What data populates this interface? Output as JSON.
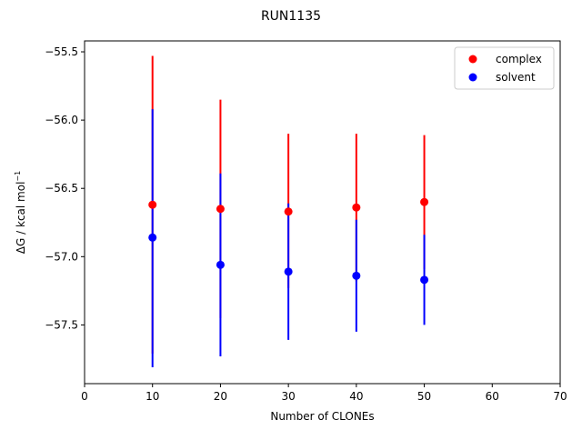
{
  "chart_data": {
    "type": "scatter",
    "title": "RUN1135",
    "xlabel": "Number of CLONEs",
    "ylabel_main": "ΔG / kcal mol",
    "ylabel_sup": "−1",
    "xlim": [
      0,
      70
    ],
    "ylim": [
      -57.93,
      -55.42
    ],
    "xticks": [
      0,
      10,
      20,
      30,
      40,
      50,
      60,
      70
    ],
    "xtick_labels": [
      "0",
      "10",
      "20",
      "30",
      "40",
      "50",
      "60",
      "70"
    ],
    "yticks": [
      -55.5,
      -56.0,
      -56.5,
      -57.0,
      -57.5
    ],
    "ytick_labels": [
      "−55.5",
      "−56.0",
      "−56.5",
      "−57.0",
      "−57.5"
    ],
    "grid": false,
    "legend_position": "top-right",
    "series": [
      {
        "name": "complex",
        "color": "#ff0000",
        "x": [
          10,
          20,
          30,
          40,
          50
        ],
        "y": [
          -56.62,
          -56.65,
          -56.67,
          -56.64,
          -56.6
        ],
        "err_low": [
          -57.71,
          -57.45,
          -57.23,
          -57.18,
          -57.09
        ],
        "err_high": [
          -55.53,
          -55.85,
          -56.1,
          -56.1,
          -56.11
        ]
      },
      {
        "name": "solvent",
        "color": "#0000ff",
        "x": [
          10,
          20,
          30,
          40,
          50
        ],
        "y": [
          -56.86,
          -57.06,
          -57.11,
          -57.14,
          -57.17
        ],
        "err_low": [
          -57.81,
          -57.73,
          -57.61,
          -57.55,
          -57.5
        ],
        "err_high": [
          -55.92,
          -56.39,
          -56.61,
          -56.73,
          -56.84
        ]
      }
    ]
  }
}
